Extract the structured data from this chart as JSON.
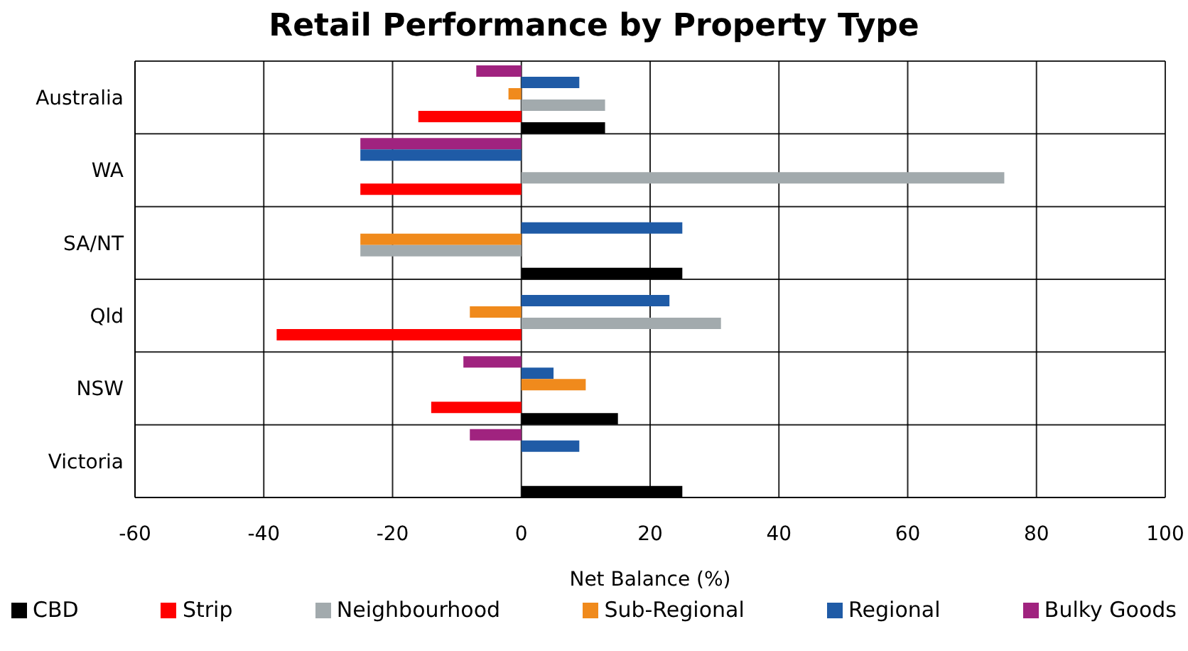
{
  "chart_data": {
    "type": "bar",
    "orientation": "horizontal",
    "title": "Retail Performance by Property Type",
    "xlabel": "Net Balance (%)",
    "categories": [
      "Australia",
      "WA",
      "SA/NT",
      "Qld",
      "NSW",
      "Victoria"
    ],
    "series": [
      {
        "name": "CBD",
        "color": "#000000",
        "values": [
          13,
          null,
          25,
          null,
          15,
          25
        ]
      },
      {
        "name": "Strip",
        "color": "#ff0000",
        "values": [
          -16,
          -25,
          null,
          -38,
          -14,
          null
        ]
      },
      {
        "name": "Neighbourhood",
        "color": "#a2aaad",
        "values": [
          13,
          75,
          -25,
          31,
          null,
          null
        ]
      },
      {
        "name": "Sub-Regional",
        "color": "#f08a1c",
        "values": [
          -2,
          null,
          -25,
          -8,
          10,
          null
        ]
      },
      {
        "name": "Regional",
        "color": "#1f5ba6",
        "values": [
          9,
          -25,
          25,
          23,
          5,
          9
        ]
      },
      {
        "name": "Bulky Goods",
        "color": "#a0237f",
        "values": [
          -7,
          -25,
          null,
          null,
          -9,
          -8
        ]
      }
    ],
    "xlim": [
      -60,
      100
    ],
    "xticks": [
      -60,
      -40,
      -20,
      0,
      20,
      40,
      60,
      80,
      100
    ],
    "grid": true,
    "legend": "bottom"
  }
}
